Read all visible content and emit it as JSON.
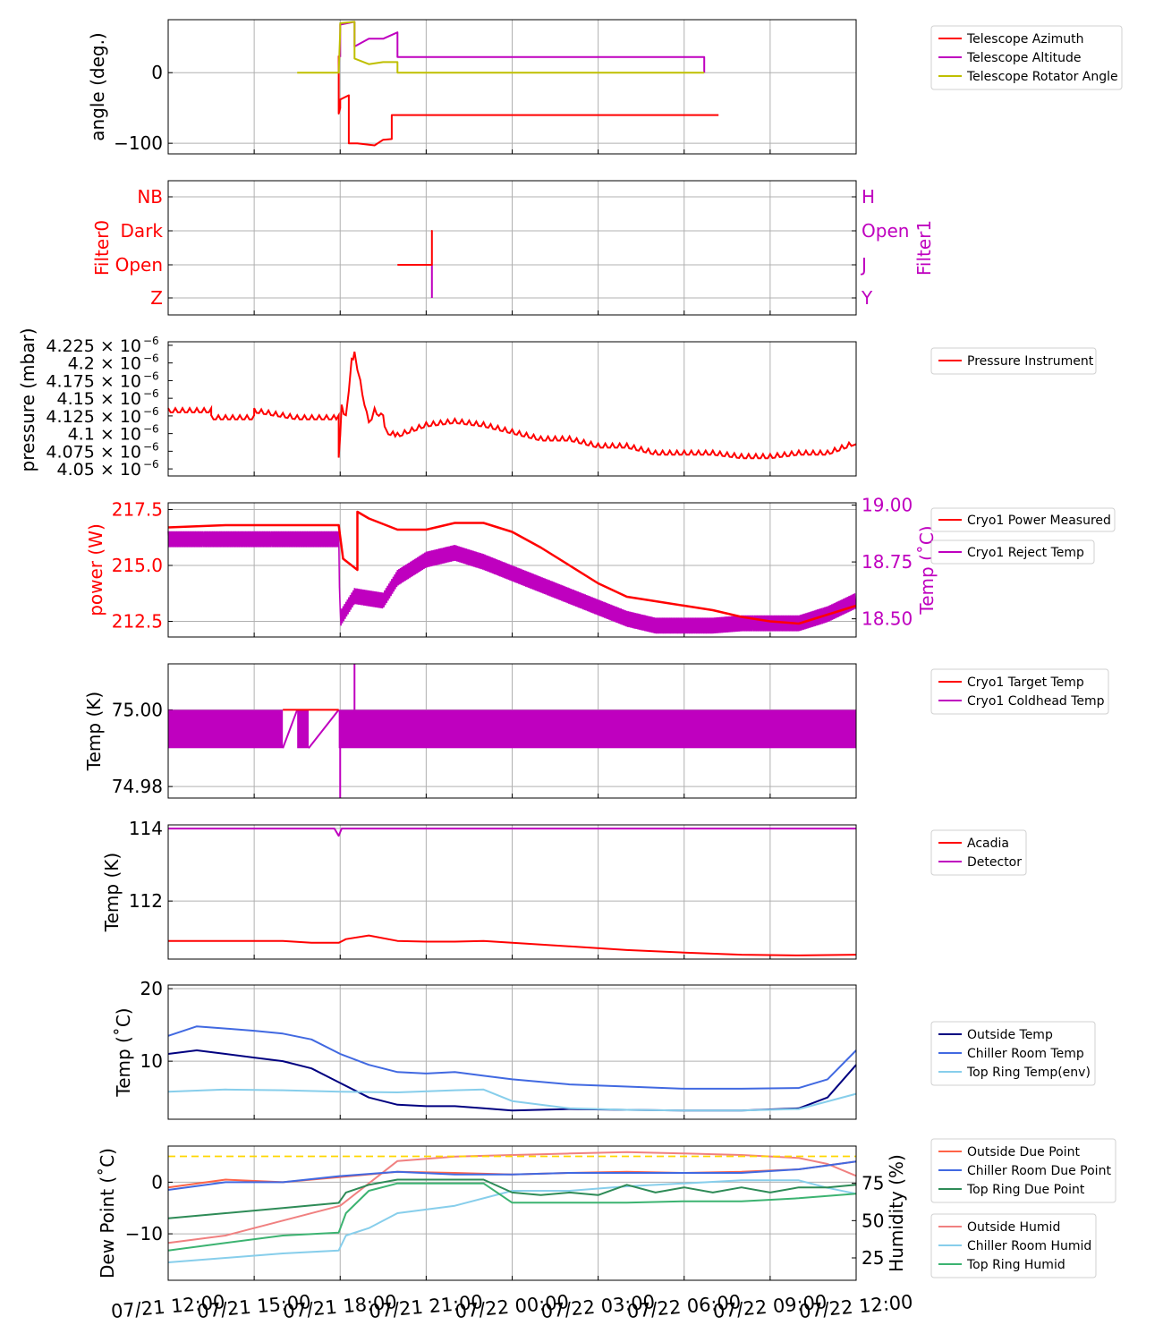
{
  "x_ticks": [
    "07/21 12:00",
    "07/21 15:00",
    "07/21 18:00",
    "07/21 21:00",
    "07/22 00:00",
    "07/22 03:00",
    "07/22 06:00",
    "07/22 09:00",
    "07/22 12:00"
  ],
  "colors": {
    "red": "#ff0000",
    "magenta": "#bf00bf",
    "olive": "#bfbf00",
    "navy": "#000080",
    "royal": "#4169e1",
    "sky": "#87ceeb",
    "salmon": "#f08080",
    "green": "#2e8b57",
    "tomato": "#ff6347",
    "gold": "#ffd700"
  },
  "chart_data": [
    {
      "type": "line",
      "ylabel": "angle (deg.)",
      "yticks": [
        "0",
        "−100"
      ],
      "ylim": [
        -115,
        75
      ],
      "legend": [
        "Telescope Azimuth",
        "Telescope Altitude",
        "Telescope Rotator Angle"
      ],
      "series": [
        {
          "name": "Telescope Azimuth",
          "color": "#ff0000",
          "x": [
            17.95,
            17.95,
            18.0,
            18.0,
            18.3,
            18.3,
            18.6,
            19.2,
            19.5,
            19.5,
            19.8,
            19.8,
            24.0,
            30.7,
            30.7,
            31.2
          ],
          "y": [
            24,
            -58,
            -50,
            -38,
            -32,
            -100,
            -100,
            -103,
            -95,
            -95,
            -94,
            -60,
            -60,
            -60,
            -60,
            -60
          ]
        },
        {
          "name": "Telescope Altitude",
          "color": "#bf00bf",
          "x": [
            18.0,
            18.0,
            18.5,
            18.5,
            19.0,
            19.5,
            20.0,
            20.0,
            30.7,
            30.7
          ],
          "y": [
            22,
            68,
            72,
            37,
            48,
            48,
            57,
            22,
            22,
            0
          ]
        },
        {
          "name": "Telescope Rotator Angle",
          "color": "#bfbf00",
          "x": [
            16.5,
            17.95,
            18.0,
            18.0,
            18.5,
            18.5,
            19.0,
            19.5,
            20.0,
            20.0,
            30.7
          ],
          "y": [
            0,
            0,
            60,
            70,
            72,
            20,
            12,
            15,
            15,
            0,
            0
          ]
        }
      ]
    },
    {
      "type": "line",
      "ylabel": "Filter0",
      "y2label": "Filter1",
      "yticks": [
        "NB",
        "Dark",
        "Open",
        "Z"
      ],
      "y2ticks": [
        "H",
        "Open",
        "J",
        "Y"
      ],
      "series": [
        {
          "name": "Filter0",
          "color": "#ff0000",
          "x": [
            20.0,
            21.2,
            21.2,
            21.2
          ],
          "y": [
            1,
            1,
            2,
            1
          ]
        },
        {
          "name": "Filter1",
          "color": "#bf00bf",
          "x": [
            20.3,
            21.2,
            21.2
          ],
          "y": [
            1,
            1,
            0
          ]
        }
      ]
    },
    {
      "type": "line",
      "ylabel": "pressure (mbar)",
      "ylim": [
        4.04,
        4.23
      ],
      "yticks": [
        "4.225",
        "4.2",
        "4.175",
        "4.15",
        "4.125",
        "4.1",
        "4.075",
        "4.05"
      ],
      "ytick_exp": "−6",
      "legend": [
        "Pressure Instrument"
      ],
      "series": [
        {
          "name": "Pressure Instrument",
          "color": "#ff0000",
          "x": [
            12,
            13.5,
            13.5,
            15,
            15,
            16.5,
            17.95,
            17.95,
            18.05,
            18.2,
            18.4,
            18.5,
            18.7,
            19.0,
            19.2,
            19.5,
            19.6,
            20,
            21,
            22,
            23,
            24,
            25,
            26,
            27,
            28,
            29,
            30,
            31,
            32,
            33,
            34,
            35,
            36
          ],
          "y": [
            4.13,
            4.13,
            4.12,
            4.12,
            4.13,
            4.12,
            4.12,
            4.06,
            4.135,
            4.12,
            4.2,
            4.21,
            4.17,
            4.11,
            4.13,
            4.12,
            4.1,
            4.095,
            4.11,
            4.115,
            4.11,
            4.1,
            4.09,
            4.09,
            4.08,
            4.08,
            4.07,
            4.07,
            4.07,
            4.065,
            4.065,
            4.07,
            4.07,
            4.085
          ]
        }
      ]
    },
    {
      "type": "line",
      "ylabel": "power (W)",
      "y2label": "Temp (˚C)",
      "yticks": [
        "217.5",
        "215.0",
        "212.5"
      ],
      "y2ticks": [
        "19.00",
        "18.75",
        "18.50"
      ],
      "ylim": [
        211.8,
        217.8
      ],
      "y2lim": [
        18.42,
        19.01
      ],
      "legend": [
        "Cryo1 Power Measured",
        "Cryo1 Reject Temp"
      ],
      "series": [
        {
          "name": "Cryo1 Power Measured",
          "color": "#ff0000",
          "x": [
            12,
            14,
            16,
            17.95,
            18.1,
            18.6,
            18.6,
            19,
            20,
            21,
            22,
            23,
            24,
            25,
            26,
            27,
            28,
            29,
            30,
            31,
            32,
            33,
            34,
            35,
            36
          ],
          "y": [
            216.7,
            216.8,
            216.8,
            216.8,
            215.3,
            214.8,
            217.4,
            217.1,
            216.6,
            216.6,
            216.9,
            216.9,
            216.5,
            215.8,
            215.0,
            214.2,
            213.6,
            213.4,
            213.2,
            213.0,
            212.7,
            212.5,
            212.4,
            212.8,
            213.2
          ]
        },
        {
          "name": "Cryo1 Reject Temp",
          "color": "#bf00bf",
          "x": [
            12,
            14,
            16,
            17.95,
            18.0,
            18.5,
            19.5,
            20,
            21,
            22,
            23,
            24,
            25,
            26,
            27,
            28,
            29,
            30,
            31,
            32,
            33,
            34,
            35,
            36
          ],
          "y": [
            18.85,
            18.85,
            18.85,
            18.85,
            18.5,
            18.6,
            18.58,
            18.68,
            18.76,
            18.79,
            18.75,
            18.7,
            18.65,
            18.6,
            18.55,
            18.5,
            18.47,
            18.47,
            18.47,
            18.48,
            18.48,
            18.48,
            18.52,
            18.58
          ]
        }
      ]
    },
    {
      "type": "line",
      "ylabel": "Temp (K)",
      "yticks": [
        "75.00",
        "74.98"
      ],
      "ylim": [
        74.977,
        75.012
      ],
      "legend": [
        "Cryo1 Target Temp",
        "Cryo1 Coldhead Temp"
      ],
      "series": [
        {
          "name": "Cryo1 Target Temp",
          "color": "#ff0000",
          "x": [
            12,
            36
          ],
          "y": [
            75.0,
            75.0
          ]
        },
        {
          "name": "Cryo1 Coldhead Temp",
          "color": "#bf00bf",
          "x": [
            12,
            36
          ],
          "y": [
            75.0,
            74.99
          ]
        }
      ]
    },
    {
      "type": "line",
      "ylabel": "Temp (K)",
      "yticks": [
        "114",
        "112"
      ],
      "ylim": [
        110.4,
        114.1
      ],
      "legend": [
        "Acadia",
        "Detector"
      ],
      "series": [
        {
          "name": "Acadia",
          "color": "#ff0000",
          "x": [
            12,
            14,
            16,
            17,
            17.95,
            18.2,
            19,
            20,
            21,
            22,
            23,
            24,
            26,
            28,
            30,
            32,
            34,
            36
          ],
          "y": [
            110.9,
            110.9,
            110.9,
            110.85,
            110.85,
            110.95,
            111.05,
            110.9,
            110.88,
            110.88,
            110.9,
            110.85,
            110.75,
            110.65,
            110.58,
            110.52,
            110.5,
            110.52
          ]
        },
        {
          "name": "Detector",
          "color": "#bf00bf",
          "x": [
            12,
            17.8,
            17.95,
            18.05,
            36
          ],
          "y": [
            114.0,
            114.0,
            113.8,
            114.0,
            114.0
          ]
        }
      ]
    },
    {
      "type": "line",
      "ylabel": "Temp (˚C)",
      "yticks": [
        "20",
        "10"
      ],
      "ylim": [
        2,
        20.5
      ],
      "legend": [
        "Outside Temp",
        "Chiller Room Temp",
        "Top Ring Temp(env)"
      ],
      "series": [
        {
          "name": "Outside Temp",
          "color": "#000080",
          "x": [
            12,
            13,
            14,
            15,
            16,
            17,
            18,
            19,
            20,
            21,
            22,
            23,
            24,
            26,
            28,
            30,
            32,
            34,
            35,
            36
          ],
          "y": [
            11,
            11.5,
            11,
            10.5,
            10,
            9,
            7,
            5,
            4,
            3.8,
            3.8,
            3.5,
            3.2,
            3.4,
            3.3,
            3.2,
            3.2,
            3.5,
            5,
            9.5
          ]
        },
        {
          "name": "Chiller Room Temp",
          "color": "#4169e1",
          "x": [
            12,
            13,
            14,
            15,
            16,
            17,
            18,
            19,
            20,
            21,
            22,
            23,
            24,
            26,
            28,
            30,
            32,
            34,
            35,
            36
          ],
          "y": [
            13.5,
            14.8,
            14.5,
            14.2,
            13.8,
            13,
            11,
            9.5,
            8.5,
            8.3,
            8.5,
            8.0,
            7.5,
            6.8,
            6.5,
            6.2,
            6.2,
            6.3,
            7.5,
            11.5
          ]
        },
        {
          "name": "Top Ring Temp(env)",
          "color": "#87ceeb",
          "x": [
            12,
            14,
            16,
            18,
            20,
            22,
            23,
            24,
            26,
            28,
            30,
            32,
            34,
            36
          ],
          "y": [
            5.8,
            6.1,
            6.0,
            5.8,
            5.7,
            6.0,
            6.1,
            4.5,
            3.5,
            3.3,
            3.2,
            3.2,
            3.4,
            5.5
          ]
        }
      ]
    },
    {
      "type": "line",
      "ylabel": "Dew Point (˚C)",
      "y2label": "Humidity (%)",
      "yticks": [
        "0",
        "−10"
      ],
      "y2ticks": [
        "75",
        "50",
        "25"
      ],
      "ylim": [
        -19,
        7
      ],
      "y2lim": [
        10,
        100
      ],
      "legend": [
        "Outside Due Point",
        "Chiller Room Due Point",
        "Top Ring Due Point"
      ],
      "legend2": [
        "Outside Humid",
        "Chiller Room Humid",
        "Top Ring Humid"
      ],
      "series": [
        {
          "name": "Outside Due Point",
          "color": "#ff6347",
          "x": [
            12,
            14,
            16,
            18,
            20,
            22,
            24,
            26,
            28,
            30,
            32,
            34,
            36
          ],
          "y": [
            -1,
            0.5,
            0,
            1,
            2,
            1.8,
            1.5,
            1.8,
            2,
            1.8,
            2,
            2.5,
            4
          ]
        },
        {
          "name": "Chiller Room Due Point",
          "color": "#4169e1",
          "x": [
            12,
            14,
            16,
            18,
            20,
            22,
            24,
            26,
            28,
            30,
            32,
            34,
            36
          ],
          "y": [
            -1.5,
            0,
            0,
            1.2,
            2,
            1.5,
            1.5,
            1.8,
            1.8,
            1.8,
            1.8,
            2.5,
            4
          ]
        },
        {
          "name": "Top Ring Due Point",
          "color": "#2e8b57",
          "x": [
            12,
            14,
            16,
            17.95,
            18.2,
            19,
            20,
            22,
            23,
            24,
            25,
            26,
            27,
            28,
            29,
            30,
            31,
            32,
            33,
            34,
            35,
            36
          ],
          "y": [
            -7,
            -6,
            -5,
            -4,
            -2,
            -0.5,
            0.5,
            0.5,
            0.5,
            -2,
            -2.5,
            -2,
            -2.5,
            -0.5,
            -2,
            -1,
            -2,
            -1,
            -2,
            -1,
            -1,
            -0.5
          ]
        },
        {
          "name": "Outside Humid",
          "color": "#f08080",
          "x": [
            12,
            14,
            16,
            18,
            20,
            22,
            24,
            26,
            28,
            30,
            32,
            34,
            35,
            36
          ],
          "y": [
            35,
            40,
            50,
            60,
            90,
            93,
            94,
            95,
            96,
            95,
            94,
            92,
            88,
            80
          ]
        },
        {
          "name": "Chiller Room Humid",
          "color": "#87ceeb",
          "x": [
            12,
            14,
            16,
            17.95,
            18.2,
            19,
            20,
            22,
            24,
            26,
            28,
            30,
            32,
            34,
            35,
            36
          ],
          "y": [
            22,
            25,
            28,
            30,
            40,
            45,
            55,
            60,
            70,
            70,
            73,
            75,
            77,
            77,
            72,
            68
          ]
        },
        {
          "name": "Top Ring Humid",
          "color": "#3cb371",
          "x": [
            12,
            14,
            16,
            17.95,
            18.2,
            19,
            20,
            22,
            23,
            24,
            26,
            28,
            30,
            32,
            34,
            36
          ],
          "y": [
            30,
            35,
            40,
            42,
            55,
            70,
            75,
            75,
            75,
            62,
            62,
            62,
            63,
            63,
            65,
            68
          ]
        },
        {
          "name": "",
          "color": "#ffd700",
          "dashed": true,
          "x": [
            12,
            36
          ],
          "y": [
            5,
            5
          ]
        }
      ]
    }
  ]
}
